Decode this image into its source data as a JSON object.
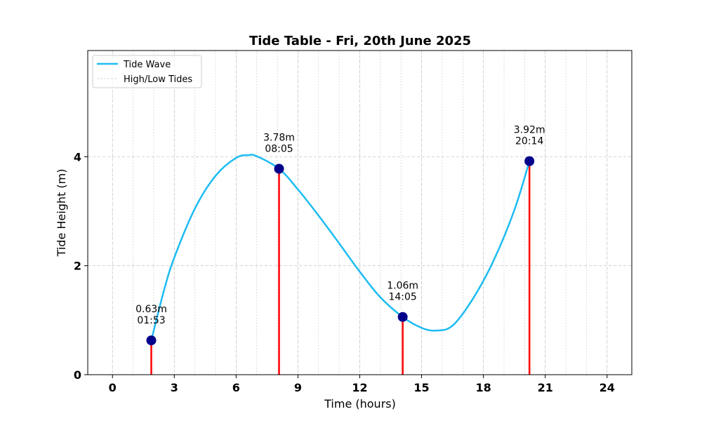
{
  "chart_data": {
    "type": "line",
    "title": "Tide Table - Fri, 20th June 2025",
    "xlabel": "Time (hours)",
    "ylabel": "Tide Height (m)",
    "xlim": [
      -1.2,
      25.2
    ],
    "ylim": [
      0,
      5.95
    ],
    "xticks": [
      0,
      3,
      6,
      9,
      12,
      15,
      18,
      21,
      24
    ],
    "xtick_labels": [
      "0",
      "3",
      "6",
      "9",
      "12",
      "15",
      "18",
      "21",
      "24"
    ],
    "yticks": [
      0,
      2,
      4
    ],
    "ytick_labels": [
      "0",
      "2",
      "4"
    ],
    "grid": true,
    "legend": {
      "position": "top-left",
      "entries": [
        "Tide Wave",
        "High/Low Tides"
      ]
    },
    "series": [
      {
        "name": "Tide Wave",
        "color": "#1cbcf2",
        "x": [
          1.883,
          2.5,
          3.0,
          4.0,
          5.0,
          6.0,
          6.6,
          7.0,
          8.083,
          9.0,
          10.0,
          11.0,
          12.0,
          13.0,
          14.083,
          15.0,
          15.7,
          16.5,
          17.5,
          18.5,
          19.5,
          20.233
        ],
        "y": [
          0.63,
          1.55,
          2.15,
          3.05,
          3.65,
          3.98,
          4.03,
          4.01,
          3.78,
          3.4,
          2.92,
          2.41,
          1.89,
          1.42,
          1.06,
          0.86,
          0.81,
          0.9,
          1.4,
          2.1,
          3.02,
          3.92
        ]
      }
    ],
    "tides": [
      {
        "time": 1.883,
        "height": 0.63,
        "label": "0.63m\n01:53"
      },
      {
        "time": 8.083,
        "height": 3.78,
        "label": "3.78m\n08:05"
      },
      {
        "time": 14.083,
        "height": 1.06,
        "label": "1.06m\n14:05"
      },
      {
        "time": 20.233,
        "height": 3.92,
        "label": "3.92m\n20:14"
      }
    ],
    "colors": {
      "wave": "#1cbcf2",
      "marker": "#00008b",
      "stem": "#ff0000",
      "grid": "#c8c8c8"
    }
  }
}
